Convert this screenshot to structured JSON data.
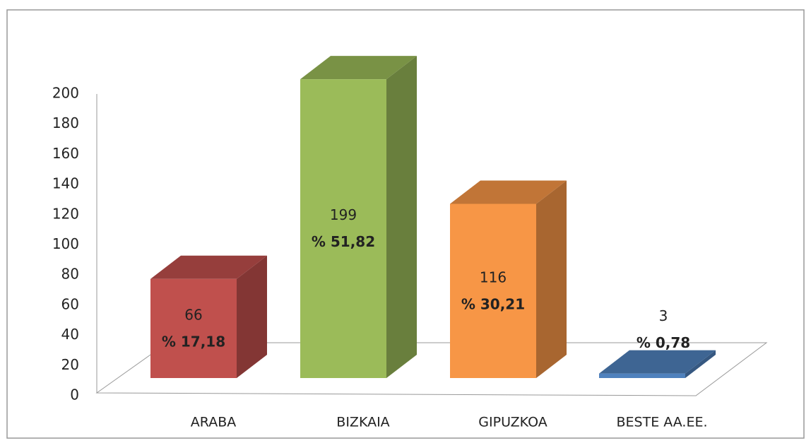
{
  "chart_data": {
    "type": "bar3d",
    "categories": [
      "ARABA",
      "BIZKAIA",
      "GIPUZKOA",
      "BESTE AA.EE."
    ],
    "values": [
      66,
      199,
      116,
      3
    ],
    "share_labels": [
      "% 17,18",
      "% 51,82",
      "% 30,21",
      "% 0,78"
    ],
    "colors": [
      "#c0504d",
      "#9bbb59",
      "#f79646",
      "#4f81bd"
    ],
    "ylim": [
      0,
      200
    ],
    "yticks": [
      0,
      20,
      40,
      60,
      80,
      100,
      120,
      140,
      160,
      180,
      200
    ]
  }
}
